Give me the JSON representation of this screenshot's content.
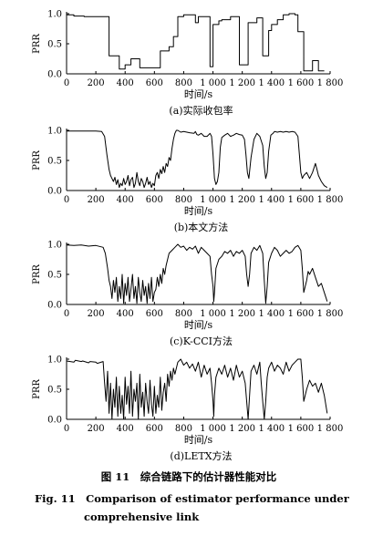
{
  "chart_data": [
    {
      "type": "line",
      "subtitle": "(a)实际收包率",
      "xlabel": "时间/s",
      "ylabel": "PRR",
      "xlim": [
        0,
        1800
      ],
      "ylim": [
        0,
        1.0
      ],
      "xticks": [
        0,
        200,
        400,
        600,
        800,
        1000,
        1200,
        1400,
        1600,
        1800
      ],
      "xtick_labels": [
        "0",
        "200",
        "400",
        "600",
        "800",
        "1 000",
        "1 200",
        "1 400",
        "1 600",
        "1 800"
      ],
      "yticks": [
        0,
        0.5,
        1.0
      ],
      "ytick_labels": [
        "0.0",
        "0.5",
        "1.0"
      ],
      "series": [
        {
          "x": [
            0,
            50,
            50,
            120,
            120,
            200,
            200,
            290,
            290,
            360,
            360,
            400,
            400,
            440,
            440,
            500,
            500,
            600,
            600,
            640,
            640,
            700,
            700,
            730,
            730,
            760,
            760,
            800,
            800,
            880,
            880,
            900,
            900,
            980,
            980,
            1000,
            1000,
            1040,
            1040,
            1060,
            1060,
            1120,
            1120,
            1180,
            1180,
            1240,
            1240,
            1300,
            1300,
            1340,
            1340,
            1380,
            1380,
            1400,
            1400,
            1440,
            1440,
            1480,
            1480,
            1520,
            1520,
            1560,
            1560,
            1580,
            1580,
            1620,
            1620,
            1680,
            1680,
            1720,
            1720,
            1760
          ],
          "y": [
            0.98,
            0.98,
            0.96,
            0.96,
            0.95,
            0.95,
            0.95,
            0.95,
            0.3,
            0.3,
            0.08,
            0.08,
            0.15,
            0.15,
            0.25,
            0.25,
            0.1,
            0.1,
            0.1,
            0.1,
            0.38,
            0.38,
            0.45,
            0.45,
            0.62,
            0.62,
            0.95,
            0.95,
            0.98,
            0.98,
            0.85,
            0.85,
            0.95,
            0.95,
            0.12,
            0.12,
            0.82,
            0.82,
            0.88,
            0.88,
            0.9,
            0.9,
            0.95,
            0.95,
            0.15,
            0.15,
            0.85,
            0.85,
            0.93,
            0.93,
            0.3,
            0.3,
            0.72,
            0.72,
            0.82,
            0.82,
            0.9,
            0.9,
            0.98,
            0.98,
            1.0,
            1.0,
            0.98,
            0.98,
            0.7,
            0.7,
            0.05,
            0.05,
            0.22,
            0.22,
            0.05,
            0.05
          ]
        }
      ]
    },
    {
      "type": "line",
      "subtitle": "(b)本文方法",
      "xlabel": "时间/s",
      "ylabel": "PRR",
      "xlim": [
        0,
        1800
      ],
      "ylim": [
        0,
        1.0
      ],
      "xticks": [
        0,
        200,
        400,
        600,
        800,
        1000,
        1200,
        1400,
        1600,
        1800
      ],
      "xtick_labels": [
        "0",
        "200",
        "400",
        "600",
        "800",
        "1 000",
        "1 200",
        "1 400",
        "1 600",
        "1 800"
      ],
      "yticks": [
        0,
        0.5,
        1.0
      ],
      "ytick_labels": [
        "0.0",
        "0.5",
        "1.0"
      ],
      "series": [
        {
          "x": [
            0,
            100,
            200,
            240,
            260,
            275,
            290,
            300,
            310,
            320,
            330,
            340,
            350,
            360,
            370,
            380,
            390,
            400,
            410,
            420,
            430,
            440,
            450,
            460,
            470,
            480,
            490,
            500,
            510,
            520,
            530,
            540,
            550,
            560,
            570,
            580,
            590,
            600,
            610,
            620,
            630,
            640,
            650,
            660,
            670,
            680,
            690,
            700,
            710,
            720,
            730,
            740,
            750,
            760,
            780,
            800,
            840,
            870,
            880,
            890,
            900,
            920,
            940,
            960,
            980,
            990,
            1000,
            1010,
            1020,
            1030,
            1040,
            1050,
            1060,
            1080,
            1100,
            1120,
            1140,
            1160,
            1180,
            1200,
            1215,
            1225,
            1235,
            1245,
            1260,
            1280,
            1300,
            1320,
            1340,
            1350,
            1360,
            1370,
            1380,
            1395,
            1410,
            1420,
            1440,
            1460,
            1480,
            1500,
            1520,
            1540,
            1560,
            1580,
            1590,
            1600,
            1610,
            1620,
            1640,
            1660,
            1680,
            1700,
            1710,
            1720,
            1740,
            1760,
            1780
          ],
          "y": [
            0.99,
            0.99,
            0.99,
            0.98,
            0.9,
            0.6,
            0.35,
            0.25,
            0.2,
            0.15,
            0.22,
            0.1,
            0.18,
            0.05,
            0.12,
            0.08,
            0.2,
            0.1,
            0.15,
            0.25,
            0.08,
            0.18,
            0.22,
            0.05,
            0.12,
            0.3,
            0.15,
            0.08,
            0.2,
            0.15,
            0.05,
            0.12,
            0.22,
            0.1,
            0.15,
            0.05,
            0.12,
            0.08,
            0.25,
            0.3,
            0.2,
            0.35,
            0.28,
            0.4,
            0.3,
            0.45,
            0.4,
            0.55,
            0.5,
            0.7,
            0.85,
            0.95,
            1.0,
            1.0,
            0.97,
            0.98,
            0.96,
            0.95,
            0.98,
            0.93,
            0.92,
            0.95,
            0.9,
            0.9,
            0.95,
            0.9,
            0.6,
            0.2,
            0.1,
            0.15,
            0.3,
            0.72,
            0.88,
            0.92,
            0.95,
            0.9,
            0.92,
            0.95,
            0.93,
            0.92,
            0.85,
            0.6,
            0.3,
            0.2,
            0.55,
            0.85,
            0.95,
            0.9,
            0.75,
            0.4,
            0.2,
            0.3,
            0.65,
            0.92,
            0.95,
            0.98,
            0.97,
            0.98,
            0.97,
            0.98,
            0.97,
            0.98,
            0.97,
            0.9,
            0.6,
            0.3,
            0.2,
            0.25,
            0.3,
            0.2,
            0.3,
            0.45,
            0.35,
            0.25,
            0.15,
            0.08,
            0.05
          ]
        }
      ]
    },
    {
      "type": "line",
      "subtitle": "(c)K-CCI方法",
      "xlabel": "时间/s",
      "ylabel": "PRR",
      "xlim": [
        0,
        1800
      ],
      "ylim": [
        0,
        1.0
      ],
      "xticks": [
        0,
        200,
        400,
        600,
        800,
        1000,
        1200,
        1400,
        1600,
        1800
      ],
      "xtick_labels": [
        "0",
        "200",
        "400",
        "600",
        "800",
        "1 000",
        "1 200",
        "1 400",
        "1 600",
        "1 800"
      ],
      "yticks": [
        0,
        0.5,
        1.0
      ],
      "ytick_labels": [
        "0.0",
        "0.5",
        "1.0"
      ],
      "series": [
        {
          "x": [
            0,
            50,
            100,
            150,
            200,
            250,
            265,
            280,
            290,
            300,
            310,
            320,
            330,
            340,
            350,
            360,
            370,
            380,
            390,
            400,
            410,
            420,
            430,
            440,
            450,
            460,
            470,
            480,
            490,
            500,
            510,
            520,
            530,
            540,
            550,
            560,
            570,
            580,
            590,
            600,
            610,
            620,
            630,
            640,
            650,
            660,
            670,
            680,
            690,
            700,
            720,
            740,
            760,
            780,
            800,
            820,
            840,
            860,
            880,
            900,
            920,
            940,
            960,
            980,
            990,
            1000,
            1005,
            1010,
            1020,
            1040,
            1060,
            1080,
            1100,
            1120,
            1140,
            1160,
            1180,
            1200,
            1220,
            1230,
            1240,
            1250,
            1260,
            1280,
            1300,
            1320,
            1340,
            1350,
            1360,
            1370,
            1380,
            1400,
            1420,
            1440,
            1460,
            1480,
            1500,
            1520,
            1540,
            1560,
            1580,
            1600,
            1610,
            1620,
            1640,
            1650,
            1660,
            1680,
            1700,
            1720,
            1740,
            1760,
            1780
          ],
          "y": [
            0.99,
            0.98,
            0.99,
            0.97,
            0.98,
            0.95,
            0.85,
            0.6,
            0.4,
            0.3,
            0.1,
            0.4,
            0.2,
            0.45,
            0.05,
            0.3,
            0.1,
            0.5,
            0.02,
            0.35,
            0.15,
            0.45,
            0.05,
            0.25,
            0.5,
            0.1,
            0.3,
            0.02,
            0.45,
            0.2,
            0.05,
            0.4,
            0.15,
            0.3,
            0.02,
            0.35,
            0.1,
            0.45,
            0.05,
            0.2,
            0.25,
            0.45,
            0.3,
            0.5,
            0.35,
            0.6,
            0.5,
            0.65,
            0.75,
            0.85,
            0.9,
            0.95,
            1.0,
            0.95,
            0.97,
            0.9,
            0.95,
            0.92,
            0.97,
            0.85,
            0.95,
            0.9,
            0.85,
            0.8,
            0.5,
            0.3,
            0.05,
            0.2,
            0.6,
            0.75,
            0.8,
            0.88,
            0.85,
            0.9,
            0.8,
            0.88,
            0.85,
            0.9,
            0.8,
            0.5,
            0.3,
            0.5,
            0.85,
            0.95,
            0.9,
            0.98,
            0.85,
            0.4,
            0.02,
            0.3,
            0.7,
            0.85,
            0.95,
            0.9,
            0.8,
            0.85,
            0.9,
            0.85,
            0.88,
            0.95,
            0.98,
            0.9,
            0.6,
            0.2,
            0.4,
            0.55,
            0.5,
            0.6,
            0.45,
            0.3,
            0.35,
            0.2,
            0.05
          ]
        }
      ]
    },
    {
      "type": "line",
      "subtitle": "(d)LETX方法",
      "xlabel": "时间/s",
      "ylabel": "PRR",
      "xlim": [
        0,
        1800
      ],
      "ylim": [
        0,
        1.0
      ],
      "xticks": [
        0,
        200,
        400,
        600,
        800,
        1000,
        1200,
        1400,
        1600,
        1800
      ],
      "xtick_labels": [
        "0",
        "200",
        "400",
        "600",
        "800",
        "1 000",
        "1 200",
        "1 400",
        "1 600",
        "1 800"
      ],
      "yticks": [
        0,
        0.5,
        1.0
      ],
      "ytick_labels": [
        "0.0",
        "0.5",
        "1.0"
      ],
      "series": [
        {
          "x": [
            0,
            50,
            60,
            100,
            110,
            150,
            160,
            200,
            210,
            250,
            260,
            270,
            280,
            290,
            300,
            310,
            320,
            330,
            340,
            350,
            360,
            370,
            380,
            390,
            400,
            410,
            420,
            430,
            440,
            450,
            460,
            470,
            480,
            490,
            500,
            510,
            520,
            530,
            540,
            550,
            560,
            570,
            580,
            590,
            600,
            610,
            620,
            630,
            640,
            650,
            660,
            670,
            680,
            690,
            700,
            710,
            720,
            730,
            740,
            760,
            780,
            800,
            820,
            840,
            860,
            880,
            900,
            920,
            940,
            960,
            980,
            990,
            1000,
            1005,
            1010,
            1020,
            1040,
            1060,
            1080,
            1100,
            1120,
            1140,
            1160,
            1180,
            1200,
            1220,
            1230,
            1240,
            1250,
            1260,
            1280,
            1300,
            1320,
            1330,
            1340,
            1350,
            1360,
            1370,
            1380,
            1400,
            1420,
            1440,
            1460,
            1480,
            1500,
            1520,
            1540,
            1560,
            1580,
            1600,
            1610,
            1620,
            1640,
            1660,
            1680,
            1700,
            1720,
            1740,
            1760,
            1780
          ],
          "y": [
            0.97,
            0.95,
            0.98,
            0.96,
            0.97,
            0.94,
            0.96,
            0.95,
            0.93,
            0.96,
            0.6,
            0.3,
            0.8,
            0.1,
            0.6,
            0.0,
            0.5,
            0.2,
            0.7,
            0.05,
            0.55,
            0.1,
            0.4,
            0.0,
            0.7,
            0.25,
            0.55,
            0.1,
            0.8,
            0.05,
            0.5,
            0.3,
            0.6,
            0.0,
            0.75,
            0.2,
            0.45,
            0.05,
            0.6,
            0.3,
            0.1,
            0.65,
            0.25,
            0.05,
            0.55,
            0.1,
            0.4,
            0.2,
            0.7,
            0.15,
            0.45,
            0.6,
            0.3,
            0.75,
            0.55,
            0.8,
            0.65,
            0.85,
            0.75,
            0.95,
            1.0,
            0.9,
            0.95,
            0.85,
            0.92,
            0.8,
            0.95,
            0.7,
            0.9,
            0.75,
            0.85,
            0.6,
            0.3,
            0.05,
            0.4,
            0.7,
            0.85,
            0.75,
            0.9,
            0.7,
            0.85,
            0.65,
            0.9,
            0.7,
            0.8,
            0.6,
            0.3,
            0.0,
            0.4,
            0.8,
            0.9,
            0.75,
            0.95,
            0.6,
            0.3,
            0.0,
            0.3,
            0.7,
            0.85,
            0.95,
            0.8,
            0.9,
            0.85,
            0.75,
            0.95,
            0.8,
            0.9,
            0.95,
            1.0,
            1.0,
            0.7,
            0.3,
            0.5,
            0.65,
            0.55,
            0.6,
            0.45,
            0.6,
            0.4,
            0.1
          ]
        }
      ]
    }
  ],
  "caption": {
    "zh": "图 11　综合链路下的估计器性能对比",
    "en_line1": "Fig. 11　Comparison of estimator performance under",
    "en_line2": "comprehensive link"
  }
}
